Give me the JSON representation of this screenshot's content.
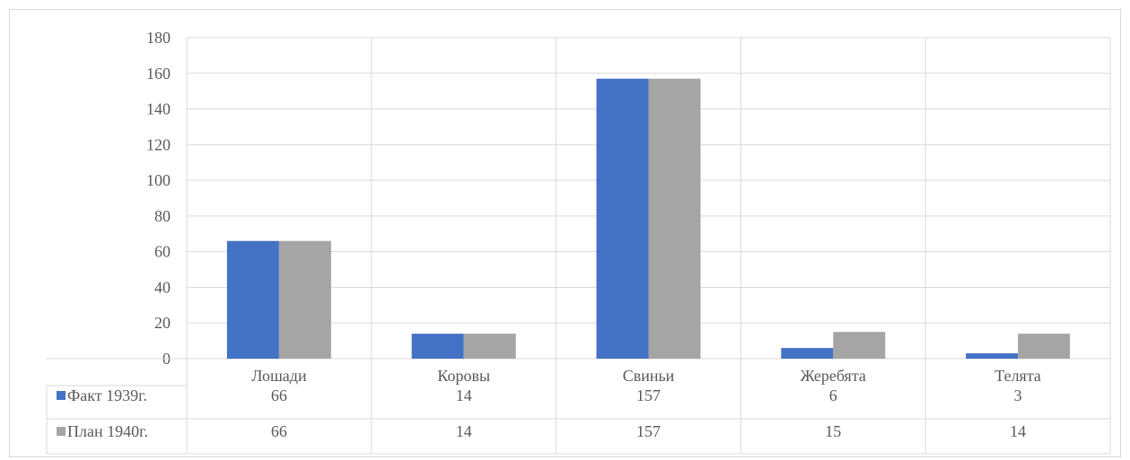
{
  "chart_data": {
    "type": "bar",
    "title": "",
    "xlabel": "",
    "ylabel": "",
    "categories": [
      "Лошади",
      "Коровы",
      "Свиньи",
      "Жеребята",
      "Телята"
    ],
    "series": [
      {
        "name": "Факт 1939г.",
        "values": [
          66,
          14,
          157,
          6,
          3
        ]
      },
      {
        "name": "План 1940г.",
        "values": [
          66,
          14,
          157,
          15,
          14
        ]
      }
    ],
    "value_labels": [
      [
        "66",
        "14",
        "157",
        "6",
        "3"
      ],
      [
        "66",
        "14",
        "157",
        "15",
        "14"
      ]
    ],
    "y_ticks": [
      "0",
      "20",
      "40",
      "60",
      "80",
      "100",
      "120",
      "140",
      "160",
      "180"
    ],
    "ylim": [
      0,
      180
    ],
    "grid": true,
    "legend": "data-table",
    "colors": [
      "#4472c4",
      "#a5a5a5"
    ]
  }
}
